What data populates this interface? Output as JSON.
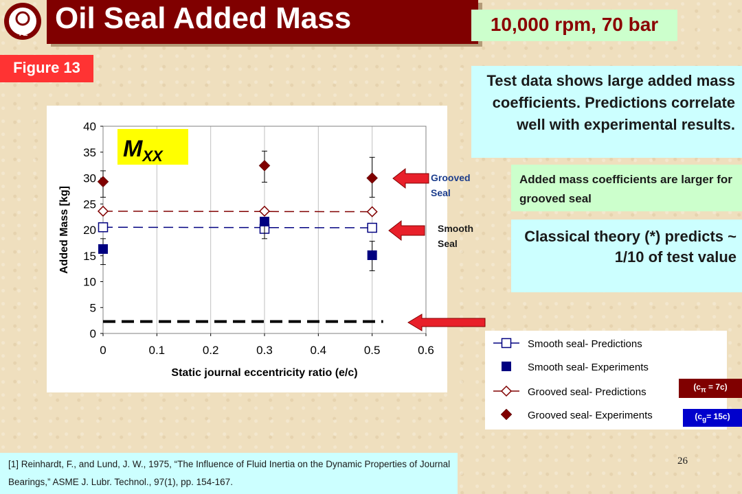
{
  "slide": {
    "title": "Oil Seal Added Mass",
    "conditions": "10,000 rpm, 70 bar",
    "figure_label": "Figure 13",
    "notes": [
      "Test data shows large added mass coefficients. Predictions correlate well with experimental results.",
      "Added mass coefficients are larger for grooved seal",
      "Classical theory (*) predicts ~ 1/10 of test value"
    ],
    "arrow_labels": {
      "grooved_line1": "Grooved",
      "grooved_line2": "Seal",
      "smooth_line1": "Smooth",
      "smooth_line2": "Seal"
    },
    "clearance_badges": {
      "ct_main": "(c",
      "ct_sub": "π",
      "ct_tail": " = 7c)",
      "cg_main": "(c",
      "cg_sub": "g",
      "cg_tail": "= 15c)"
    },
    "reference": "[1] Reinhardt, F., and Lund, J. W., 1975, “The Influence of Fluid Inertia on the Dynamic Properties of Journal Bearings,” ASME J. Lubr. Technol., 97(1), pp. 154-167.",
    "page_number": "26",
    "logo_text": "TL",
    "colors": {
      "title_bar": "#800000",
      "accent_red": "#ff3333",
      "note_cyan": "#ccffff",
      "note_green": "#ccffcc",
      "smooth": "#000080",
      "grooved": "#800000"
    }
  },
  "chart_data": {
    "type": "scatter",
    "annotation": "M",
    "annotation_sub": "XX",
    "xlabel": "Static journal eccentricity ratio (e/c)",
    "ylabel": "Added Mass [kg]",
    "xlim": [
      0,
      0.6
    ],
    "ylim": [
      0,
      40
    ],
    "xticks": [
      "0",
      "0.1",
      "0.2",
      "0.3",
      "0.4",
      "0.5",
      "0.6"
    ],
    "yticks": [
      "0",
      "5",
      "10",
      "15",
      "20",
      "25",
      "30",
      "35",
      "40"
    ],
    "grid": "vertical",
    "legend_position": "outside-right-bottom",
    "series": [
      {
        "name": "Smooth seal- Predictions",
        "kind": "line-marker",
        "marker": "open-square",
        "color": "#000080",
        "x": [
          0,
          0.3,
          0.5
        ],
        "y": [
          20.5,
          20.2,
          20.4
        ]
      },
      {
        "name": "Smooth seal- Experiments",
        "kind": "marker",
        "marker": "filled-square",
        "color": "#000080",
        "x": [
          0,
          0.3,
          0.5
        ],
        "y": [
          16.3,
          21.6,
          15.1
        ],
        "err_low": [
          13.3,
          18.3,
          12.1
        ],
        "err_high": [
          18.3,
          22.3,
          17.8
        ]
      },
      {
        "name": "Grooved seal- Predictions",
        "kind": "line-marker",
        "marker": "open-diamond",
        "color": "#800000",
        "x": [
          0,
          0.3,
          0.5
        ],
        "y": [
          23.6,
          23.6,
          23.5
        ]
      },
      {
        "name": "Grooved seal- Experiments",
        "kind": "marker",
        "marker": "filled-diamond",
        "color": "#800000",
        "x": [
          0,
          0.3,
          0.5
        ],
        "y": [
          29.3,
          32.4,
          30.0
        ],
        "err_low": [
          26.3,
          29.2,
          26.3
        ],
        "err_high": [
          31.4,
          35.2,
          34.0
        ]
      }
    ],
    "classical_theory": {
      "y": 2.3,
      "xrange": [
        0,
        0.5
      ]
    }
  }
}
